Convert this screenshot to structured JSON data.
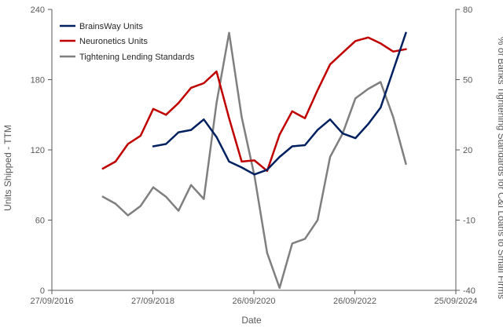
{
  "chart_data": {
    "type": "line",
    "title": "",
    "xlabel": "Date",
    "ylabel": "Units Shipped - TTM",
    "y2label": "% of Banks Tightening Standards for C&I Loans to Small Firms",
    "xlim": [
      "2016-09-27",
      "2024-09-25"
    ],
    "x_ticks": [
      "27/09/2016",
      "27/09/2018",
      "26/09/2020",
      "26/09/2022",
      "25/09/2024"
    ],
    "ylim": [
      0,
      240
    ],
    "y_ticks": [
      0,
      60,
      120,
      180,
      240
    ],
    "y2lim": [
      -40,
      80
    ],
    "y2_ticks": [
      -40,
      -10,
      20,
      50,
      80
    ],
    "grid": false,
    "legend": "top-left",
    "series": [
      {
        "name": "BrainsWay Units",
        "axis": "left",
        "color": "#002060",
        "x": [
          "2018-09-30",
          "2018-12-31",
          "2019-03-31",
          "2019-06-30",
          "2019-09-30",
          "2019-12-31",
          "2020-03-31",
          "2020-06-30",
          "2020-09-30",
          "2020-12-31",
          "2021-03-31",
          "2021-06-30",
          "2021-09-30",
          "2021-12-31",
          "2022-03-31",
          "2022-06-30",
          "2022-09-30",
          "2022-12-31",
          "2023-03-31",
          "2023-06-30",
          "2023-09-30",
          "2023-12-31",
          "2024-03-31"
        ],
        "values": [
          123,
          125,
          135,
          137,
          146,
          131,
          110,
          105,
          99,
          103,
          114,
          123,
          124,
          137,
          146,
          134,
          130,
          142,
          156,
          188,
          220,
          null,
          null
        ]
      },
      {
        "name": "Neuronetics Units",
        "axis": "left",
        "color": "#C00000",
        "x": [
          "2017-09-30",
          "2017-12-31",
          "2018-03-31",
          "2018-06-30",
          "2018-09-30",
          "2018-12-31",
          "2019-03-31",
          "2019-06-30",
          "2019-09-30",
          "2019-12-31",
          "2020-03-31",
          "2020-06-30",
          "2020-09-30",
          "2020-12-31",
          "2021-03-31",
          "2021-06-30",
          "2021-09-30",
          "2021-12-31",
          "2022-03-31",
          "2022-06-30",
          "2022-09-30",
          "2022-12-31",
          "2023-03-31",
          "2023-06-30",
          "2023-09-30",
          "2023-12-31",
          "2024-03-31"
        ],
        "values": [
          104,
          110,
          125,
          132,
          155,
          150,
          160,
          173,
          177,
          187,
          147,
          110,
          111,
          102,
          133,
          153,
          147,
          171,
          193,
          203,
          213,
          216,
          211,
          204,
          206,
          null,
          null
        ]
      },
      {
        "name": "Tightening Lending Standards",
        "axis": "right",
        "color": "#7F7F7F",
        "x": [
          "2017-09-30",
          "2017-12-31",
          "2018-03-31",
          "2018-06-30",
          "2018-09-30",
          "2018-12-31",
          "2019-03-31",
          "2019-06-30",
          "2019-09-30",
          "2019-12-31",
          "2020-03-31",
          "2020-06-30",
          "2020-09-30",
          "2020-12-31",
          "2021-03-31",
          "2021-06-30",
          "2021-09-30",
          "2021-12-31",
          "2022-03-31",
          "2022-06-30",
          "2022-09-30",
          "2022-12-31",
          "2023-03-31",
          "2023-06-30",
          "2023-09-30",
          "2023-12-31",
          "2024-03-31"
        ],
        "values": [
          0,
          -3,
          -8,
          -4,
          4,
          0,
          -6,
          5,
          -1,
          40,
          70,
          34,
          9,
          -24,
          -39,
          -20,
          -18,
          -10,
          17,
          27,
          42,
          46,
          49,
          34,
          14,
          null,
          null
        ]
      }
    ]
  }
}
